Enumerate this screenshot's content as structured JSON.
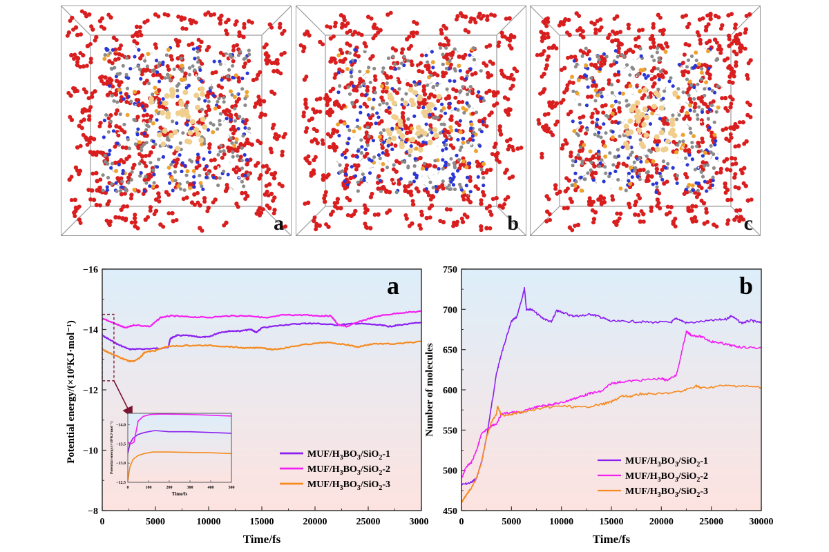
{
  "figure": {
    "molecular_panels": [
      {
        "label": "a",
        "legend_colors": {
          "oxygen": "#d81e1e",
          "nitrogen": "#2a36d6",
          "carbon": "#8a8a8a",
          "boron": "#f0a22e",
          "silicon": "#f0cf8e",
          "hydrogen": "#e8e8e8"
        }
      },
      {
        "label": "b"
      },
      {
        "label": "c"
      }
    ]
  },
  "chart_data": [
    {
      "type": "line",
      "panel_label": "a",
      "title": "",
      "xlabel": "Time/fs",
      "ylabel": "Potential energy/(×10⁶KJ·mol⁻¹)",
      "xlim": [
        0,
        30000
      ],
      "ylim": [
        -8,
        -16
      ],
      "y_inverted": true,
      "xticks": [
        "0",
        "5000",
        "10000",
        "15000",
        "20000",
        "25000",
        "30000"
      ],
      "yticks": [
        "−16",
        "−14",
        "−12",
        "−10",
        "−8"
      ],
      "grid": false,
      "legend_position": "bottom-right",
      "background_gradient": [
        "#ddeefa",
        "#fde3e0"
      ],
      "series": [
        {
          "name": "MUF/H3BO3/SiO2-1",
          "color": "#8a1ff0",
          "x": [
            0,
            500,
            1500,
            2500,
            3500,
            5000,
            6200,
            6400,
            7000,
            8000,
            9000,
            10000,
            11000,
            12000,
            13000,
            14000,
            14500,
            15000,
            17000,
            19000,
            20000,
            22000,
            24000,
            26000,
            27000,
            28000,
            30000
          ],
          "y": [
            -13.8,
            -13.7,
            -13.5,
            -13.35,
            -13.35,
            -13.37,
            -13.4,
            -13.7,
            -13.8,
            -13.8,
            -13.75,
            -13.75,
            -13.9,
            -13.95,
            -13.95,
            -14.0,
            -13.9,
            -14.05,
            -14.15,
            -14.2,
            -14.2,
            -14.15,
            -14.2,
            -14.15,
            -14.1,
            -14.15,
            -14.23
          ]
        },
        {
          "name": "MUF/H3BO3/SiO2-2",
          "color": "#f21ff2",
          "x": [
            0,
            500,
            1500,
            2200,
            3000,
            4500,
            5500,
            6500,
            8000,
            10000,
            12000,
            14000,
            15500,
            17000,
            19000,
            20500,
            21500,
            22200,
            23000,
            24500,
            26000,
            28000,
            30000
          ],
          "y": [
            -14.35,
            -14.3,
            -14.15,
            -14.05,
            -14.15,
            -14.1,
            -14.4,
            -14.45,
            -14.42,
            -14.4,
            -14.45,
            -14.45,
            -14.38,
            -14.48,
            -14.48,
            -14.45,
            -14.45,
            -14.15,
            -14.1,
            -14.3,
            -14.45,
            -14.55,
            -14.6
          ]
        },
        {
          "name": "MUF/H3BO3/SiO2-3",
          "color": "#f58a1f",
          "x": [
            0,
            500,
            1500,
            2500,
            3000,
            3500,
            4000,
            5000,
            6000,
            8000,
            10000,
            12000,
            13500,
            15000,
            16000,
            17000,
            19000,
            21000,
            23000,
            24000,
            25500,
            27500,
            30000
          ],
          "y": [
            -13.35,
            -13.25,
            -13.1,
            -12.95,
            -12.95,
            -13.05,
            -13.25,
            -13.3,
            -13.43,
            -13.47,
            -13.47,
            -13.43,
            -13.38,
            -13.4,
            -13.33,
            -13.38,
            -13.5,
            -13.57,
            -13.5,
            -13.42,
            -13.53,
            -13.52,
            -13.6
          ]
        }
      ],
      "zoom_box": {
        "x_range": [
          0,
          500
        ],
        "y_range": [
          -12.3,
          -14.5
        ]
      },
      "inset": {
        "xlabel": "Time/fs",
        "ylabel": "Potential energy/(×10⁶KJ·mol⁻¹)",
        "xlim": [
          0,
          500
        ],
        "ylim": [
          -12.5,
          -14.3
        ],
        "xticks": [
          "0",
          "100",
          "200",
          "300",
          "400",
          "500"
        ],
        "yticks": [
          "−14.0",
          "−13.5",
          "−13.0",
          "−12.5"
        ],
        "series": [
          {
            "name": "MUF/H3BO3/SiO2-1",
            "color": "#8a1ff0",
            "x": [
              0,
              10,
              25,
              50,
              80,
              130,
              200,
              300,
              400,
              500
            ],
            "y": [
              -13.25,
              -13.5,
              -13.65,
              -13.75,
              -13.8,
              -13.85,
              -13.82,
              -13.82,
              -13.8,
              -13.78
            ]
          },
          {
            "name": "MUF/H3BO3/SiO2-2",
            "color": "#f21ff2",
            "x": [
              0,
              15,
              30,
              50,
              75,
              110,
              170,
              300,
              400,
              500
            ],
            "y": [
              -13.55,
              -13.5,
              -13.55,
              -14.1,
              -14.22,
              -14.27,
              -14.28,
              -14.27,
              -14.25,
              -14.23
            ]
          },
          {
            "name": "MUF/H3BO3/SiO2-3",
            "color": "#f58a1f",
            "x": [
              0,
              10,
              25,
              50,
              80,
              120,
              200,
              300,
              400,
              500
            ],
            "y": [
              -12.55,
              -12.9,
              -13.1,
              -13.2,
              -13.25,
              -13.29,
              -13.29,
              -13.28,
              -13.27,
              -13.25
            ]
          }
        ]
      }
    },
    {
      "type": "line",
      "panel_label": "b",
      "title": "",
      "xlabel": "Time/fs",
      "ylabel": "Number of molecules",
      "xlim": [
        0,
        30000
      ],
      "ylim": [
        450,
        750
      ],
      "xticks": [
        "0",
        "5000",
        "10000",
        "15000",
        "20000",
        "25000",
        "30000"
      ],
      "yticks": [
        "450",
        "500",
        "550",
        "600",
        "650",
        "700",
        "750"
      ],
      "grid": false,
      "legend_position": "bottom-right",
      "background_gradient": [
        "#ddeefa",
        "#fde3e0"
      ],
      "series": [
        {
          "name": "MUF/H3BO3/SiO2-1",
          "color": "#8a1ff0",
          "x": [
            0,
            1000,
            1500,
            2000,
            2500,
            3000,
            3500,
            4000,
            4500,
            5000,
            5500,
            6000,
            6300,
            6500,
            7000,
            8000,
            9000,
            9500,
            10000,
            11000,
            12000,
            13000,
            14000,
            15000,
            17000,
            19000,
            21000,
            21500,
            22500,
            25000,
            26500,
            27000,
            28000,
            29000,
            30000
          ],
          "y": [
            482,
            485,
            490,
            510,
            540,
            580,
            620,
            645,
            665,
            685,
            690,
            710,
            727,
            700,
            700,
            690,
            684,
            698,
            697,
            692,
            692,
            694,
            690,
            685,
            685,
            684,
            684,
            689,
            683,
            686,
            688,
            692,
            683,
            686,
            683
          ]
        },
        {
          "name": "MUF/H3BO3/SiO2-2",
          "color": "#f21ff2",
          "x": [
            0,
            500,
            1000,
            1500,
            2000,
            2500,
            3000,
            3500,
            4000,
            5000,
            6000,
            7000,
            8000,
            9000,
            10000,
            11000,
            12000,
            13000,
            14000,
            15000,
            16000,
            18000,
            20000,
            20500,
            21500,
            22000,
            22500,
            23000,
            24000,
            25000,
            26000,
            27000,
            28000,
            30000
          ],
          "y": [
            490,
            505,
            510,
            525,
            545,
            550,
            555,
            558,
            570,
            572,
            572,
            577,
            580,
            582,
            584,
            588,
            592,
            596,
            598,
            608,
            610,
            612,
            614,
            612,
            618,
            645,
            672,
            668,
            666,
            660,
            658,
            655,
            653,
            652
          ]
        },
        {
          "name": "MUF/H3BO3/SiO2-3",
          "color": "#f58a1f",
          "x": [
            0,
            500,
            1000,
            1500,
            2000,
            2500,
            3000,
            3500,
            3600,
            4000,
            5000,
            6000,
            8000,
            10000,
            12000,
            14000,
            15000,
            16000,
            17000,
            18000,
            20000,
            22000,
            23500,
            24000,
            26000,
            28000,
            30000
          ],
          "y": [
            460,
            470,
            478,
            490,
            510,
            540,
            560,
            570,
            580,
            568,
            570,
            572,
            577,
            580,
            578,
            582,
            585,
            592,
            592,
            595,
            595,
            598,
            605,
            602,
            605,
            605,
            603
          ]
        }
      ]
    }
  ]
}
